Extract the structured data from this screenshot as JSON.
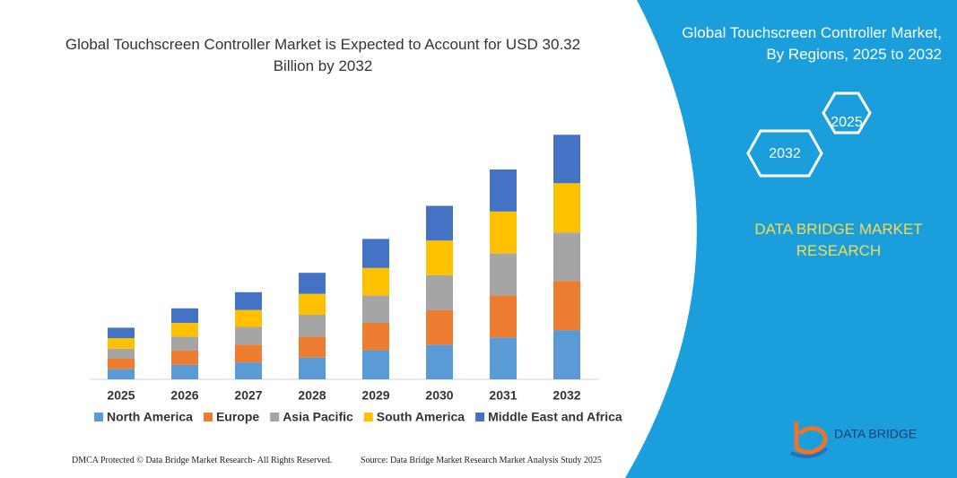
{
  "chart_data": {
    "type": "bar",
    "stacked": true,
    "title": "Global Touchscreen Controller Market is Expected to Account for USD 30.32 Billion by 2032",
    "categories": [
      "2025",
      "2026",
      "2027",
      "2028",
      "2029",
      "2030",
      "2031",
      "2032"
    ],
    "series": [
      {
        "name": "North America",
        "color": "#5b9bd5",
        "values": [
          1.3,
          1.8,
          2.1,
          2.7,
          3.6,
          4.3,
          5.2,
          6.1
        ]
      },
      {
        "name": "Europe",
        "color": "#ed7d31",
        "values": [
          1.3,
          1.8,
          2.2,
          2.6,
          3.4,
          4.3,
          5.2,
          6.1
        ]
      },
      {
        "name": "Asia Pacific",
        "color": "#a5a5a5",
        "values": [
          1.2,
          1.7,
          2.2,
          2.7,
          3.4,
          4.3,
          5.2,
          6.0
        ]
      },
      {
        "name": "South America",
        "color": "#ffc000",
        "values": [
          1.3,
          1.7,
          2.1,
          2.6,
          3.4,
          4.3,
          5.2,
          6.1
        ]
      },
      {
        "name": "Middle East and Africa",
        "color": "#4472c4",
        "values": [
          1.3,
          1.8,
          2.2,
          2.6,
          3.6,
          4.3,
          5.2,
          6.0
        ]
      }
    ],
    "legend": "bottom"
  },
  "panel": {
    "title": "Global Touchscreen Controller Market, By Regions, 2025 to 2032",
    "hexagons": [
      "2025",
      "2032"
    ],
    "brand": "DATA BRIDGE MARKET RESEARCH",
    "logo": "DATA BRIDGE"
  },
  "footer": {
    "left": "DMCA Protected © Data Bridge Market Research-  All Rights Reserved.",
    "right": "Source: Data Bridge Market Research  Market Analysis Study 2025"
  }
}
